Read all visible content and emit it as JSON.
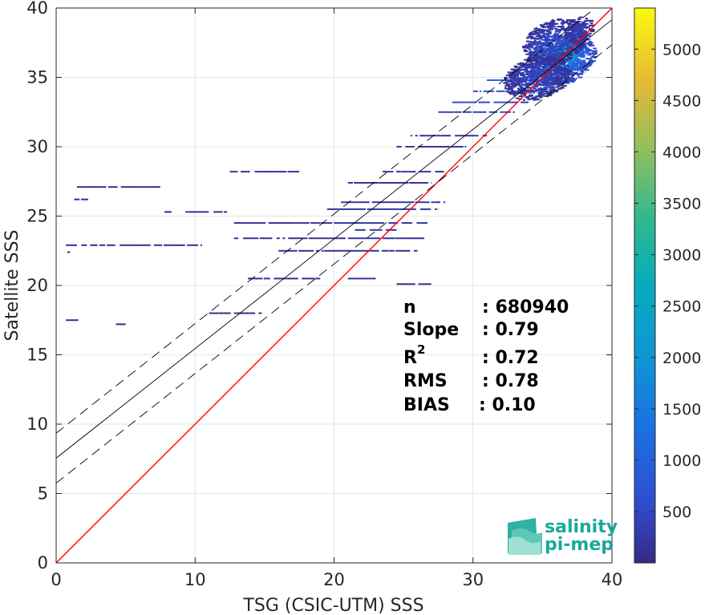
{
  "chart_data": {
    "type": "heatmap",
    "xlabel": "TSG (CSIC-UTM) SSS",
    "ylabel": "Satellite SSS",
    "xlim": [
      0,
      40
    ],
    "ylim": [
      0,
      40
    ],
    "xticks": [
      0,
      10,
      20,
      30,
      40
    ],
    "yticks": [
      0,
      5,
      10,
      15,
      20,
      25,
      30,
      35,
      40
    ],
    "grid": true,
    "colorbar": {
      "range": [
        1,
        5400
      ],
      "ticks": [
        500,
        1000,
        1500,
        2000,
        2500,
        3000,
        3500,
        4000,
        4500,
        5000
      ],
      "colormap": "parula"
    },
    "reference_lines": [
      {
        "name": "1:1",
        "color": "#ff0000",
        "style": "solid",
        "intercept": 0,
        "slope": 1
      },
      {
        "name": "regression",
        "color": "#000000",
        "style": "solid",
        "intercept": 7.55,
        "slope": 0.79
      },
      {
        "name": "regression+",
        "color": "#000000",
        "style": "dashed",
        "intercept": 9.35,
        "slope": 0.79
      },
      {
        "name": "regression-",
        "color": "#000000",
        "style": "dashed",
        "intercept": 5.75,
        "slope": 0.79
      }
    ],
    "density_segments": [
      {
        "x0": 1.5,
        "x1": 7.5,
        "y": 27.1,
        "c": 80
      },
      {
        "x0": 1.3,
        "x1": 2.3,
        "y": 26.2,
        "c": 80
      },
      {
        "x0": 0.7,
        "x1": 10.5,
        "y": 22.9,
        "c": 90
      },
      {
        "x0": 0.8,
        "x1": 1.0,
        "y": 22.4,
        "c": 60
      },
      {
        "x0": 0.7,
        "x1": 1.6,
        "y": 17.5,
        "c": 60
      },
      {
        "x0": 4.3,
        "x1": 5.0,
        "y": 17.2,
        "c": 50
      },
      {
        "x0": 7.8,
        "x1": 8.3,
        "y": 25.3,
        "c": 60
      },
      {
        "x0": 9.3,
        "x1": 12.3,
        "y": 25.3,
        "c": 180
      },
      {
        "x0": 11.0,
        "x1": 14.8,
        "y": 18.0,
        "c": 70
      },
      {
        "x0": 12.5,
        "x1": 17.5,
        "y": 28.2,
        "c": 160
      },
      {
        "x0": 13.8,
        "x1": 19.0,
        "y": 20.5,
        "c": 120
      },
      {
        "x0": 12.8,
        "x1": 26.5,
        "y": 23.4,
        "c": 200
      },
      {
        "x0": 12.8,
        "x1": 27.0,
        "y": 24.5,
        "c": 160
      },
      {
        "x0": 16.0,
        "x1": 26.0,
        "y": 22.5,
        "c": 110
      },
      {
        "x0": 19.5,
        "x1": 27.5,
        "y": 25.5,
        "c": 200
      },
      {
        "x0": 20.5,
        "x1": 28.0,
        "y": 26.0,
        "c": 260
      },
      {
        "x0": 21.0,
        "x1": 27.0,
        "y": 27.4,
        "c": 160
      },
      {
        "x0": 21.0,
        "x1": 23.0,
        "y": 20.5,
        "c": 200
      },
      {
        "x0": 21.5,
        "x1": 24.5,
        "y": 24.0,
        "c": 150
      },
      {
        "x0": 23.5,
        "x1": 28.0,
        "y": 28.2,
        "c": 240
      },
      {
        "x0": 24.5,
        "x1": 29.5,
        "y": 30.0,
        "c": 260
      },
      {
        "x0": 25.5,
        "x1": 31.0,
        "y": 30.8,
        "c": 220
      },
      {
        "x0": 24.5,
        "x1": 27.0,
        "y": 20.1,
        "c": 100
      },
      {
        "x0": 27.5,
        "x1": 33.0,
        "y": 32.5,
        "c": 400
      },
      {
        "x0": 28.5,
        "x1": 34.0,
        "y": 33.2,
        "c": 500
      },
      {
        "x0": 30.0,
        "x1": 35.0,
        "y": 34.0,
        "c": 700
      },
      {
        "x0": 31.0,
        "x1": 37.0,
        "y": 34.8,
        "c": 1000
      }
    ],
    "density_blobs": [
      {
        "x": 36.2,
        "y": 36.3,
        "rx": 2.4,
        "ry": 1.9,
        "c": 1800
      },
      {
        "x": 36.5,
        "y": 36.6,
        "rx": 1.3,
        "ry": 1.1,
        "c": 3300
      },
      {
        "x": 36.7,
        "y": 36.8,
        "rx": 0.6,
        "ry": 0.55,
        "c": 4800
      },
      {
        "x": 35.8,
        "y": 37.6,
        "rx": 2.2,
        "ry": 1.7,
        "c": 600
      },
      {
        "x": 34.5,
        "y": 35.0,
        "rx": 2.3,
        "ry": 1.6,
        "c": 500
      },
      {
        "x": 37.5,
        "y": 38.5,
        "rx": 1.0,
        "ry": 0.9,
        "c": 400
      }
    ],
    "stats": [
      {
        "label": "n",
        "value": ": 680940"
      },
      {
        "label": "Slope",
        "value": ": 0.79"
      },
      {
        "label": "R",
        "sup": "2",
        "value": ": 0.72"
      },
      {
        "label": "RMS",
        "value": ": 0.78"
      },
      {
        "label": "BIAS",
        "value": ": 0.10"
      }
    ]
  },
  "logo": {
    "line1": "salinity",
    "line2": "pi-mep",
    "color": "#1aa99a"
  }
}
